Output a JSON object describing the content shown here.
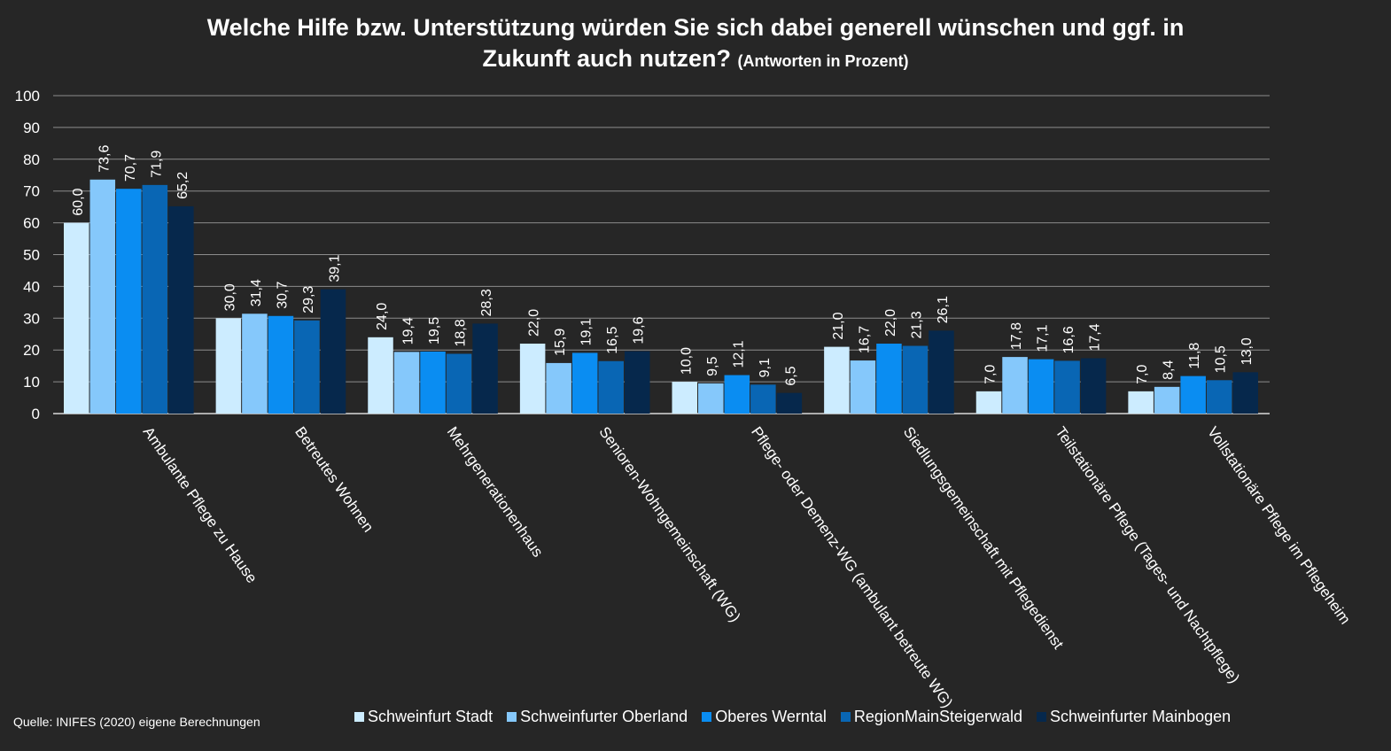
{
  "title": {
    "line1": "Welche Hilfe bzw. Unterstützung würden Sie sich dabei generell wünschen und ggf. in",
    "line2": "Zukunft auch nutzen?",
    "suffix": "(Antworten in Prozent)"
  },
  "source": "Quelle: INIFES (2020) eigene Berechnungen",
  "colors": {
    "background": "#262626",
    "grid": "#8c8c8c",
    "text": "#ffffff"
  },
  "chart_data": {
    "type": "bar",
    "title": "Welche Hilfe bzw. Unterstützung würden Sie sich dabei generell wünschen und ggf. in Zukunft auch nutzen? (Antworten in Prozent)",
    "xlabel": "",
    "ylabel": "",
    "ylim": [
      0,
      100
    ],
    "yticks": [
      "0",
      "10",
      "20",
      "30",
      "40",
      "50",
      "60",
      "70",
      "80",
      "90",
      "100"
    ],
    "grid": true,
    "legend_position": "bottom",
    "categories": [
      "Ambulante Pflege zu Hause",
      "Betreutes Wohnen",
      "Mehrgenerationenhaus",
      "Senioren-Wohngemeinschaft (WG)",
      "Pflege- oder Demenz-WG (ambulant betreute WG)",
      "Siedlungsgemeinschaft mit Pflegedienst",
      "Teilstationäre Pflege (Tages- und Nachtpflege)",
      "Vollstationäre Pflege im Pflegeheim"
    ],
    "series": [
      {
        "name": "Schweinfurt Stadt",
        "color": "#ccecff",
        "values": [
          60.0,
          30.0,
          24.0,
          22.0,
          10.0,
          21.0,
          7.0,
          7.0
        ],
        "labels": [
          "60,0",
          "30,0",
          "24,0",
          "22,0",
          "10,0",
          "21,0",
          "7,0",
          "7,0"
        ]
      },
      {
        "name": "Schweinfurter Oberland",
        "color": "#85c8fb",
        "values": [
          73.6,
          31.4,
          19.4,
          15.9,
          9.5,
          16.7,
          17.8,
          8.4
        ],
        "labels": [
          "73,6",
          "31,4",
          "19,4",
          "15,9",
          "9,5",
          "16,7",
          "17,8",
          "8,4"
        ]
      },
      {
        "name": "Oberes Werntal",
        "color": "#0a8df2",
        "values": [
          70.7,
          30.7,
          19.5,
          19.1,
          12.1,
          22.0,
          17.1,
          11.8
        ],
        "labels": [
          "70,7",
          "30,7",
          "19,5",
          "19,1",
          "12,1",
          "22,0",
          "17,1",
          "11,8"
        ]
      },
      {
        "name": "RegionMainSteigerwald",
        "color": "#0966b4",
        "values": [
          71.9,
          29.3,
          18.8,
          16.5,
          9.1,
          21.3,
          16.6,
          10.5
        ],
        "labels": [
          "71,9",
          "29,3",
          "18,8",
          "16,5",
          "9,1",
          "21,3",
          "16,6",
          "10,5"
        ]
      },
      {
        "name": "Schweinfurter Mainbogen",
        "color": "#06284c",
        "values": [
          65.2,
          39.1,
          28.3,
          19.6,
          6.5,
          26.1,
          17.4,
          13.0
        ],
        "labels": [
          "65,2",
          "39,1",
          "28,3",
          "19,6",
          "6,5",
          "26,1",
          "17,4",
          "13,0"
        ]
      }
    ]
  }
}
